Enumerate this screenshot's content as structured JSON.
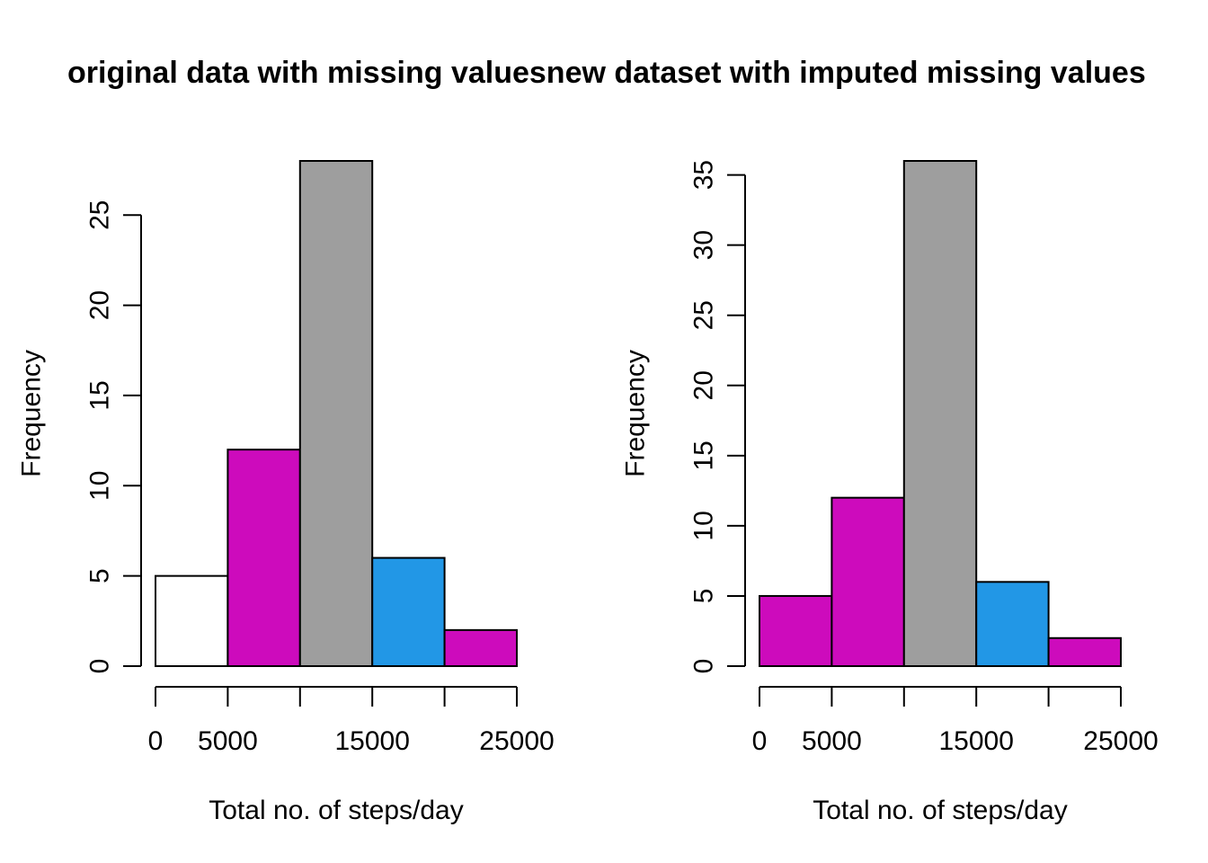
{
  "title": "original data with missing valuesnew dataset with imputed missing values",
  "chart_data": [
    {
      "type": "bar",
      "xlabel": "Total no. of steps/day",
      "ylabel": "Frequency",
      "bins": [
        [
          0,
          5000
        ],
        [
          5000,
          10000
        ],
        [
          10000,
          15000
        ],
        [
          15000,
          20000
        ],
        [
          20000,
          25000
        ]
      ],
      "values": [
        5,
        12,
        28,
        6,
        2
      ],
      "colors": [
        "#FFFFFF",
        "#CD0BBC",
        "#9E9E9E",
        "#2297E6",
        "#CD0BBC"
      ],
      "xlim": [
        0,
        25000
      ],
      "ylim": [
        0,
        28
      ],
      "xticks": [
        0,
        5000,
        10000,
        15000,
        20000,
        25000
      ],
      "xtick_labels": [
        "0",
        "5000",
        "",
        "15000",
        "",
        "25000"
      ],
      "yticks": [
        0,
        5,
        10,
        15,
        20,
        25
      ],
      "ytick_labels": [
        "0",
        "5",
        "10",
        "15",
        "20",
        "25"
      ]
    },
    {
      "type": "bar",
      "xlabel": "Total no. of steps/day",
      "ylabel": "Frequency",
      "bins": [
        [
          0,
          5000
        ],
        [
          5000,
          10000
        ],
        [
          10000,
          15000
        ],
        [
          15000,
          20000
        ],
        [
          20000,
          25000
        ]
      ],
      "values": [
        5,
        12,
        36,
        6,
        2
      ],
      "colors": [
        "#CD0BBC",
        "#CD0BBC",
        "#9E9E9E",
        "#2297E6",
        "#CD0BBC"
      ],
      "xlim": [
        0,
        25000
      ],
      "ylim": [
        0,
        36
      ],
      "xticks": [
        0,
        5000,
        10000,
        15000,
        20000,
        25000
      ],
      "xtick_labels": [
        "0",
        "5000",
        "",
        "15000",
        "",
        "25000"
      ],
      "yticks": [
        0,
        5,
        10,
        15,
        20,
        25,
        30,
        35
      ],
      "ytick_labels": [
        "0",
        "5",
        "10",
        "15",
        "20",
        "25",
        "30",
        "35"
      ]
    }
  ]
}
